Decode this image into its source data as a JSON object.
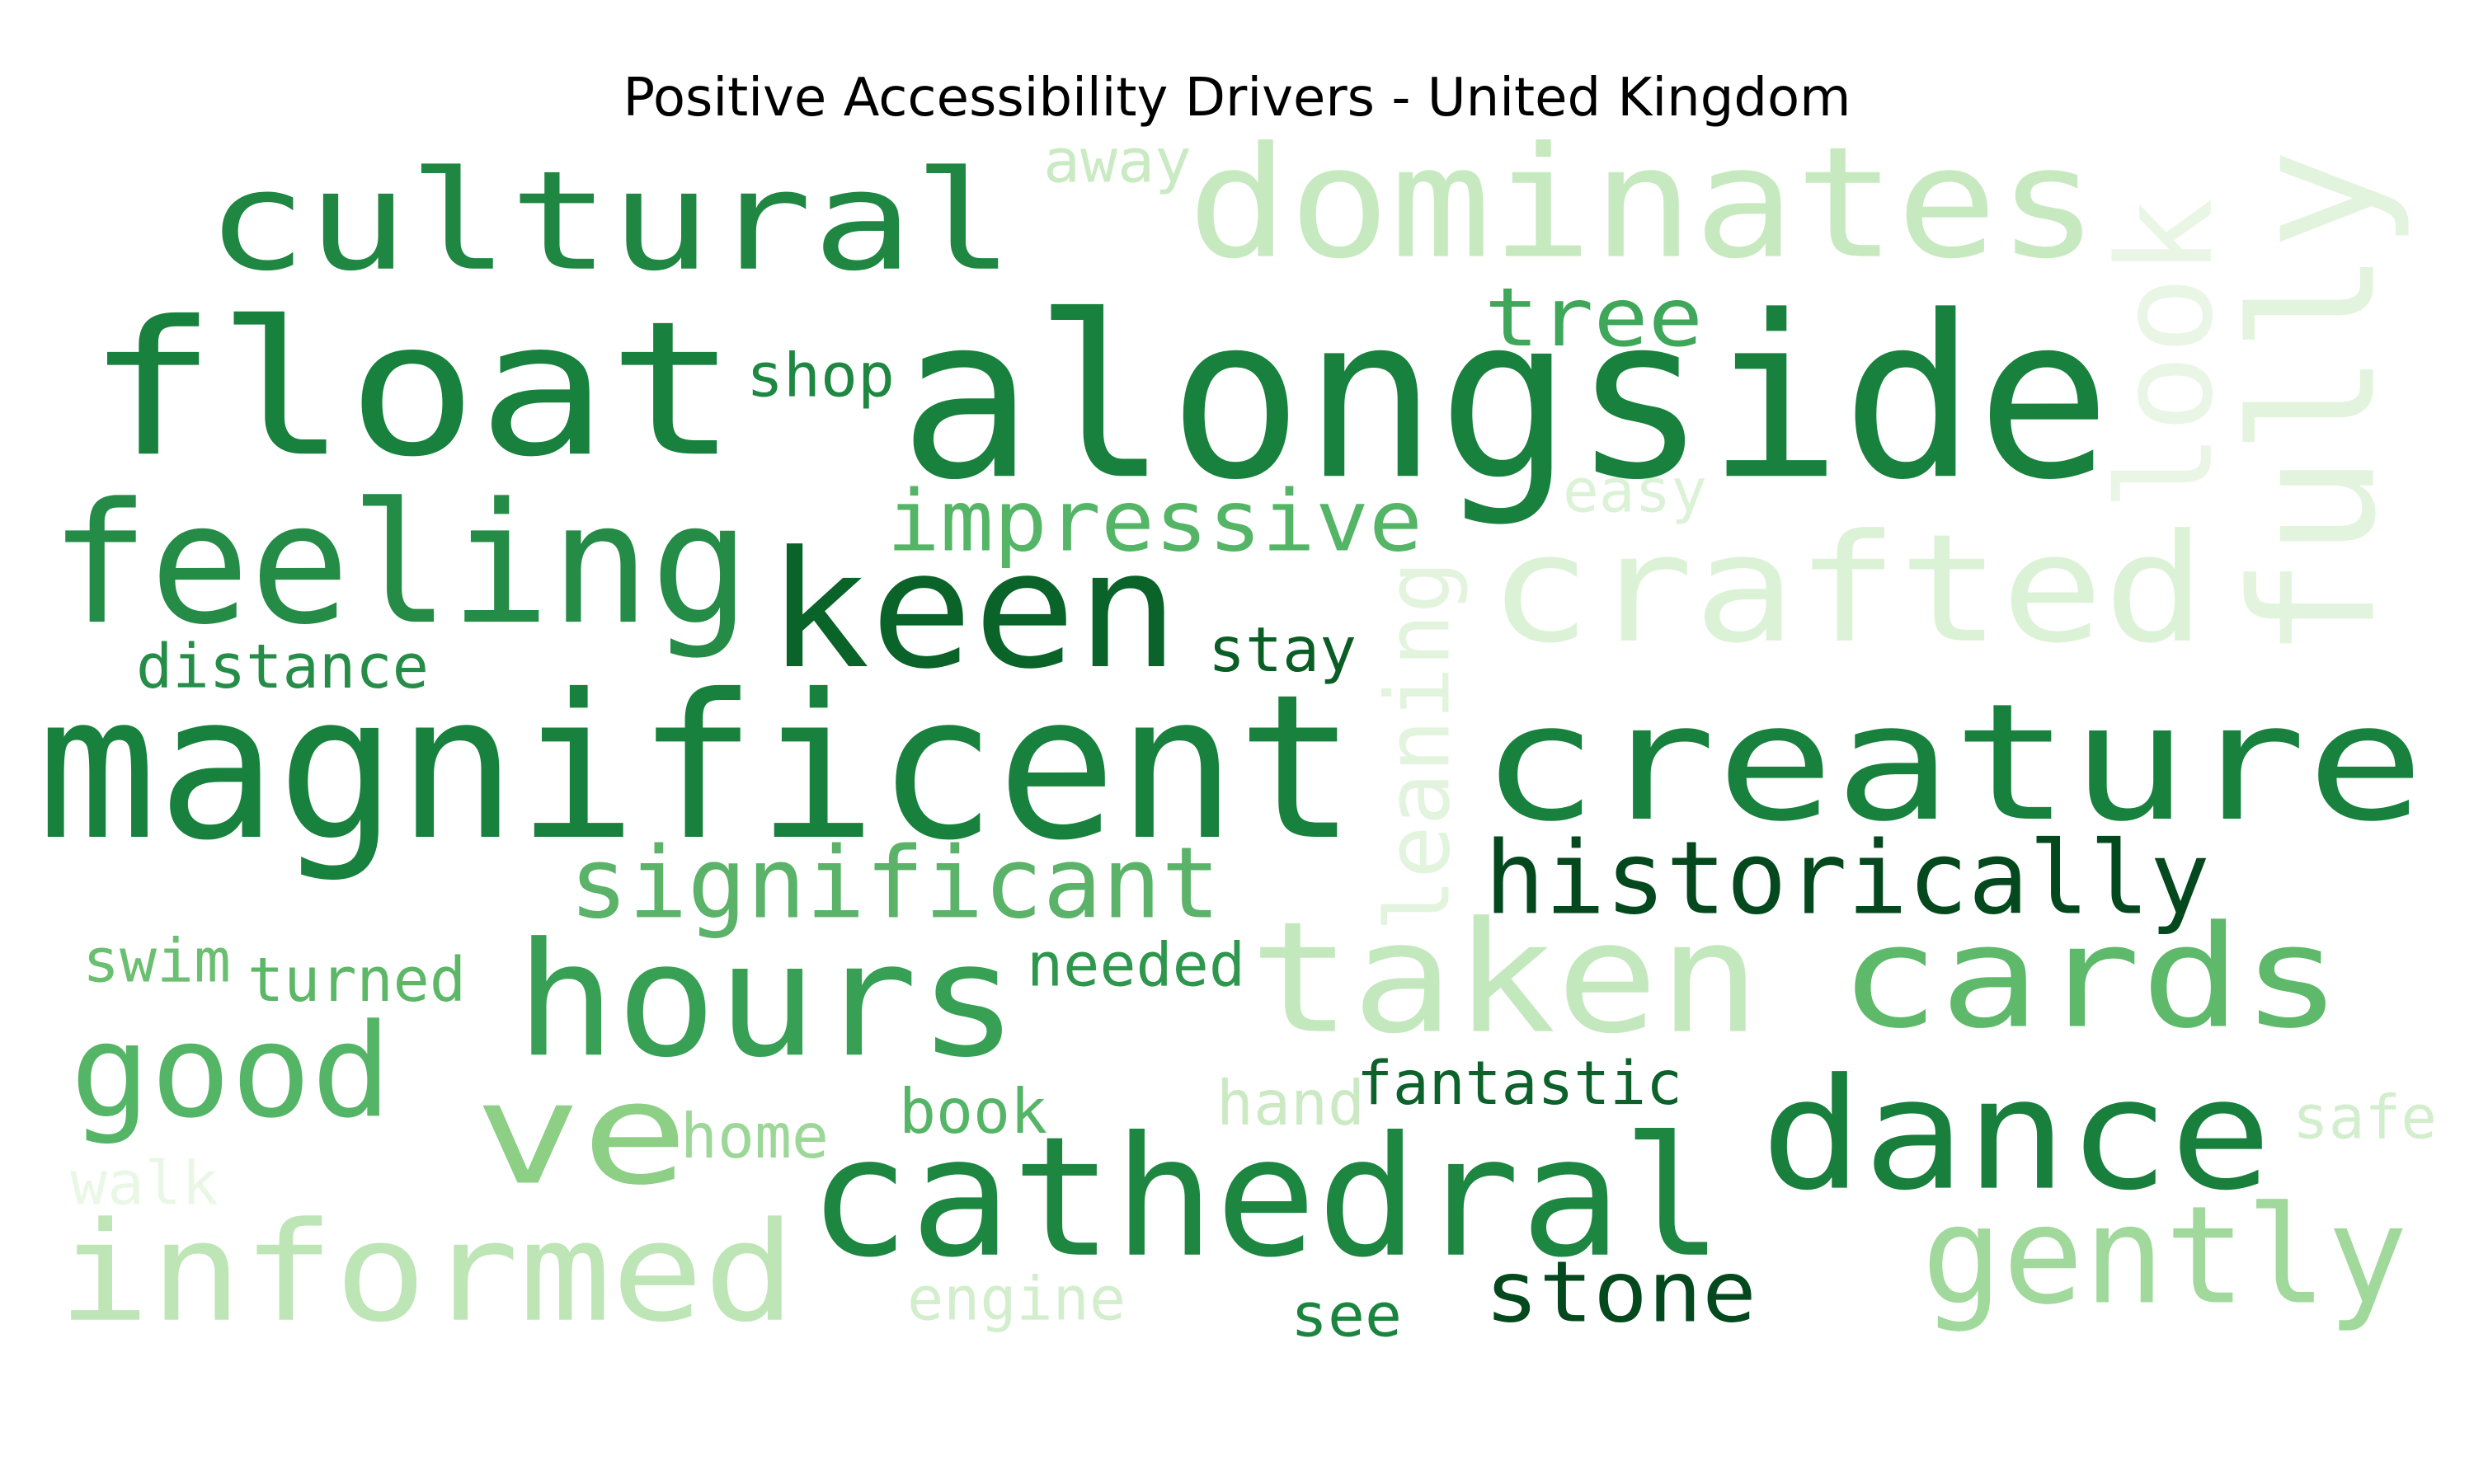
{
  "chart_data": {
    "type": "wordcloud",
    "title": "Positive Accessibility Drivers - United Kingdom",
    "colormap": "Greens",
    "words": [
      {
        "text": "float",
        "color": "#17813d"
      },
      {
        "text": "alongside",
        "color": "#17813d"
      },
      {
        "text": "magnificent",
        "color": "#17813d"
      },
      {
        "text": "creature",
        "color": "#17813d"
      },
      {
        "text": "cultural",
        "color": "#1f8742"
      },
      {
        "text": "dominates",
        "color": "#c7e9c0"
      },
      {
        "text": "crafted",
        "color": "#dcf2d7"
      },
      {
        "text": "feeling",
        "color": "#248c46"
      },
      {
        "text": "keen",
        "color": "#0a6329"
      },
      {
        "text": "taken",
        "color": "#c4e8bd"
      },
      {
        "text": "cards",
        "color": "#5eb96b"
      },
      {
        "text": "hours",
        "color": "#37a055"
      },
      {
        "text": "cathedral",
        "color": "#1d8640"
      },
      {
        "text": "dance",
        "color": "#187f3d"
      },
      {
        "text": "informed",
        "color": "#bde5b5"
      },
      {
        "text": "fully",
        "color": "#e3f4de"
      },
      {
        "text": "look",
        "color": "#e9f6e5"
      },
      {
        "text": "leaning",
        "color": "#e2f4dd"
      },
      {
        "text": "ve",
        "color": "#8ccf85"
      },
      {
        "text": "good",
        "color": "#55b567"
      },
      {
        "text": "gently",
        "color": "#a0d99b"
      },
      {
        "text": "historically",
        "color": "#04491d"
      },
      {
        "text": "significant",
        "color": "#5ab369"
      },
      {
        "text": "impressive",
        "color": "#55b567"
      },
      {
        "text": "stone",
        "color": "#04491d"
      },
      {
        "text": "tree",
        "color": "#3ea75a"
      },
      {
        "text": "shop",
        "color": "#1e8741"
      },
      {
        "text": "distance",
        "color": "#258d47"
      },
      {
        "text": "stay",
        "color": "#0a5d25"
      },
      {
        "text": "needed",
        "color": "#2e964d"
      },
      {
        "text": "swim",
        "color": "#6bbf70"
      },
      {
        "text": "turned",
        "color": "#5cb767"
      },
      {
        "text": "fantastic",
        "color": "#0c622a"
      },
      {
        "text": "book",
        "color": "#55b567"
      },
      {
        "text": "home",
        "color": "#9cd797"
      },
      {
        "text": "hand",
        "color": "#cbeac4"
      },
      {
        "text": "easy",
        "color": "#dcf2d7"
      },
      {
        "text": "away",
        "color": "#c9eac2"
      },
      {
        "text": "safe",
        "color": "#d3eecd"
      },
      {
        "text": "walk",
        "color": "#eaf7e6"
      },
      {
        "text": "engine",
        "color": "#d3eecd"
      },
      {
        "text": "see",
        "color": "#1b843f"
      }
    ]
  }
}
